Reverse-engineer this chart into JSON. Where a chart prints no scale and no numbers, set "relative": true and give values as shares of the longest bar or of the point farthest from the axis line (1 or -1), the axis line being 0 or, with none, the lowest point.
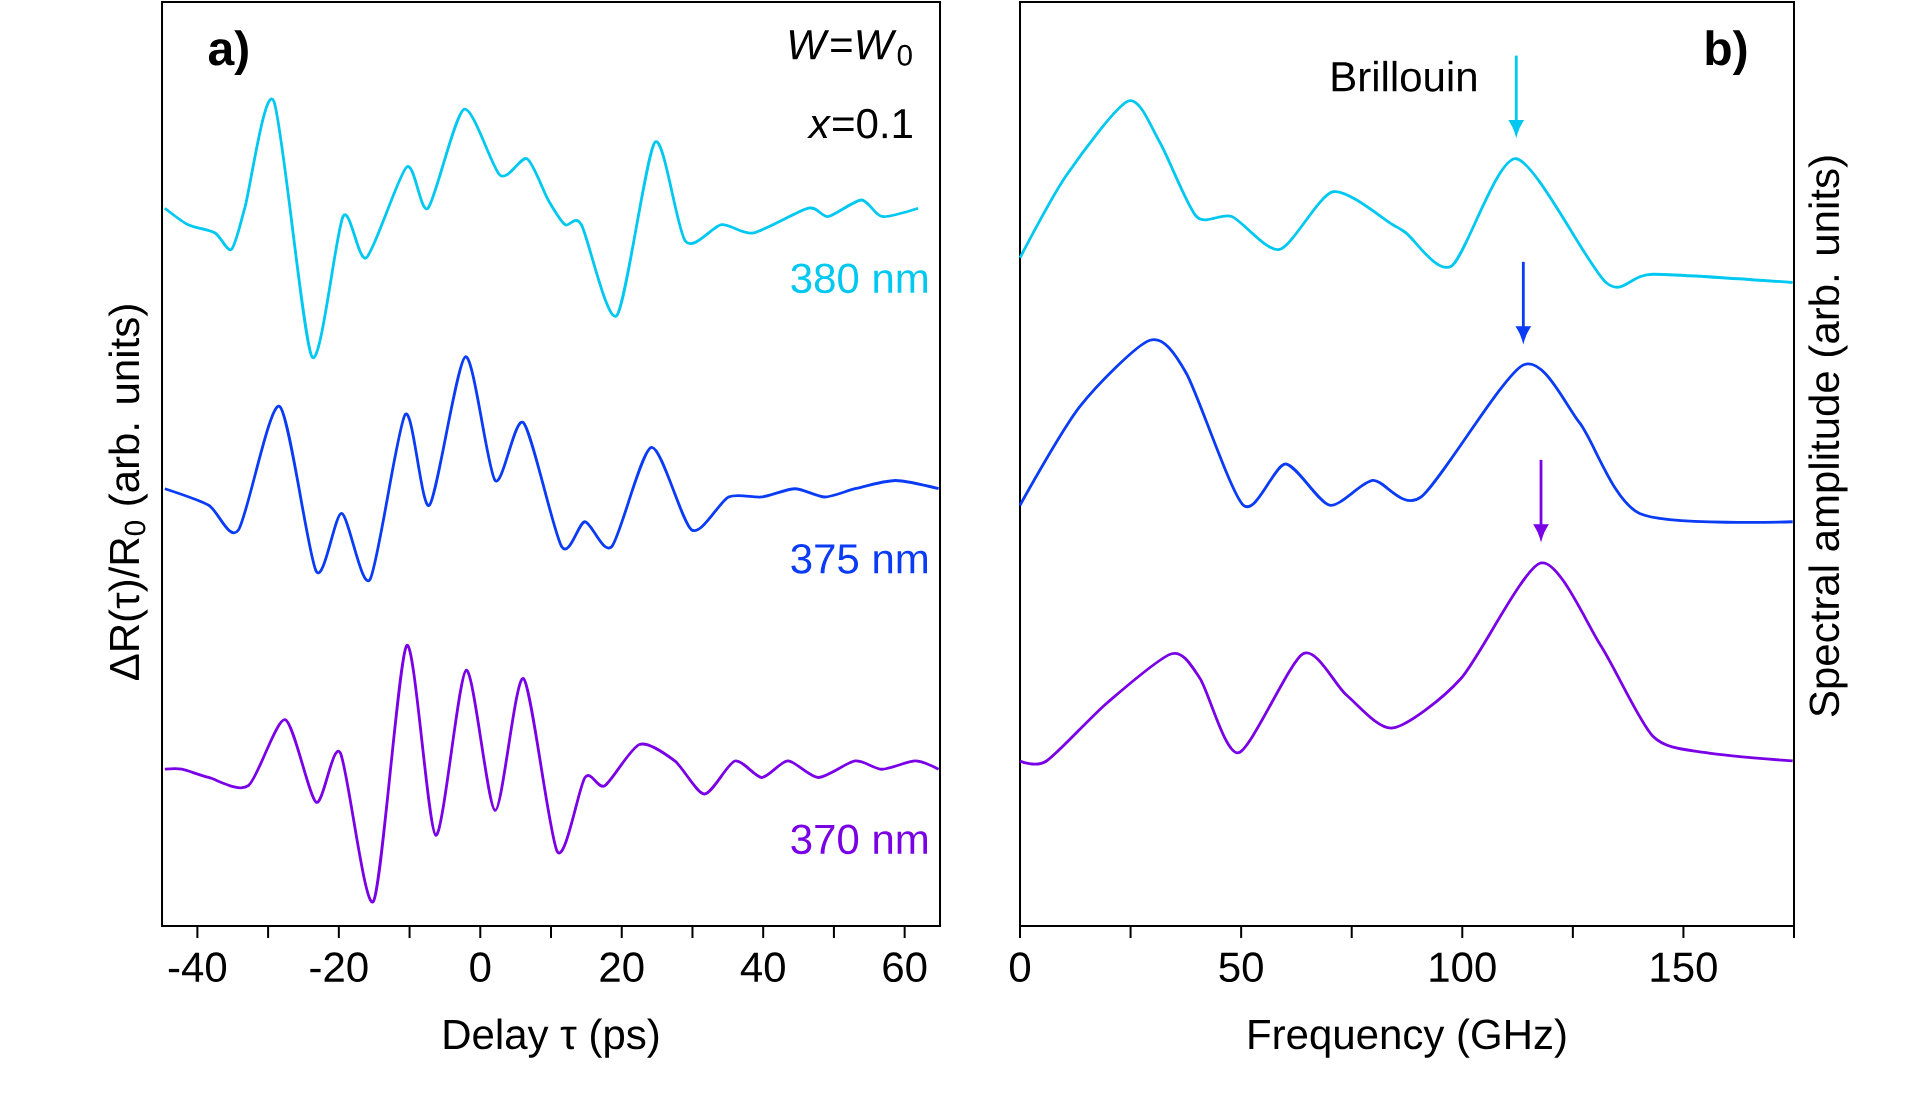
{
  "chart_data": [
    {
      "type": "line",
      "title": "a)",
      "xlabel": "Delay τ (ps)",
      "ylabel": "ΔR(τ)/R$_{0}$ (arb. units)",
      "relative": true,
      "xlim": [
        -45,
        65
      ],
      "xticks": [
        -40,
        {
          "value": -30,
          "label": null
        },
        -20,
        {
          "value": -10,
          "label": null
        },
        0,
        {
          "value": 10,
          "label": null
        },
        20,
        {
          "value": 30,
          "label": null
        },
        40,
        {
          "value": 50,
          "label": null
        },
        60
      ],
      "annotations": [
        "*W*=*W*$_{0}$",
        "*x*=0.1"
      ],
      "series": [
        {
          "name": "380 nm",
          "color": "#00c8f0",
          "x": [
            -44.6,
            -41.3,
            -37.5,
            -35.2,
            -33.3,
            -29.2,
            -23.8,
            -19.4,
            -16.1,
            -10.4,
            -7.4,
            -2.3,
            2.8,
            6.6,
            9.6,
            12.0,
            14.3,
            19.3,
            24.7,
            29.0,
            34.1,
            38.6,
            46.4,
            49.2,
            53.9,
            56.8,
            61.9
          ],
          "values": [
            0.87,
            0.85,
            0.84,
            0.82,
            0.87,
            1,
            0.69,
            0.86,
            0.81,
            0.92,
            0.87,
            0.99,
            0.91,
            0.93,
            0.88,
            0.85,
            0.85,
            0.74,
            0.95,
            0.83,
            0.85,
            0.84,
            0.87,
            0.86,
            0.88,
            0.86,
            0.87
          ]
        },
        {
          "name": "375 nm",
          "color": "#0a3cf5",
          "x": [
            -44.6,
            -38.4,
            -34.2,
            -28.4,
            -23.2,
            -19.6,
            -15.6,
            -10.6,
            -7.2,
            -2.1,
            2.1,
            6.1,
            11.5,
            14.8,
            18.6,
            24.2,
            29.9,
            35.1,
            39.8,
            44.5,
            48.7,
            53.0,
            58.7,
            64.8
          ],
          "values": [
            0.53,
            0.51,
            0.48,
            0.63,
            0.43,
            0.5,
            0.42,
            0.62,
            0.51,
            0.69,
            0.54,
            0.61,
            0.46,
            0.49,
            0.46,
            0.58,
            0.48,
            0.52,
            0.52,
            0.53,
            0.52,
            0.53,
            0.54,
            0.53
          ]
        },
        {
          "name": "370 nm",
          "color": "#7a00e6",
          "x": [
            -44.6,
            -42.2,
            -38.4,
            -32.8,
            -27.6,
            -23.2,
            -19.8,
            -15.1,
            -10.4,
            -6.3,
            -2.0,
            2.1,
            6.1,
            10.9,
            14.8,
            17.6,
            22.5,
            27.5,
            31.7,
            36.0,
            39.8,
            43.5,
            47.8,
            53.0,
            56.8,
            61.5,
            64.8
          ],
          "values": [
            0.19,
            0.19,
            0.18,
            0.17,
            0.25,
            0.15,
            0.21,
            0.03,
            0.34,
            0.11,
            0.31,
            0.14,
            0.3,
            0.09,
            0.18,
            0.17,
            0.22,
            0.2,
            0.16,
            0.2,
            0.18,
            0.2,
            0.18,
            0.2,
            0.19,
            0.2,
            0.19
          ]
        }
      ]
    },
    {
      "type": "line",
      "title": "b)",
      "xlabel": "Frequency (GHz)",
      "ylabel": "Spectral amplitude (arb. units)",
      "relative": true,
      "xlim": [
        0,
        175
      ],
      "xticks": [
        0,
        {
          "value": 25,
          "label": null
        },
        50,
        {
          "value": 75,
          "label": null
        },
        100,
        {
          "value": 125,
          "label": null
        },
        150,
        {
          "value": 175,
          "label": null
        }
      ],
      "annotations": [
        {
          "text": "Brillouin",
          "x": 112.2,
          "y": 0.93
        }
      ],
      "series": [
        {
          "color": "#00c8f0",
          "x": [
            0,
            10.5,
            24.5,
            31.6,
            39.9,
            47.9,
            58.7,
            70.8,
            84.3,
            87.3,
            97.6,
            112.2,
            132.5,
            143.1,
            174.7
          ],
          "values": [
            0.81,
            0.91,
            1,
            0.95,
            0.86,
            0.86,
            0.82,
            0.89,
            0.85,
            0.84,
            0.8,
            0.93,
            0.78,
            0.79,
            0.78
          ]
        },
        {
          "color": "#0a3cf5",
          "x": [
            0,
            13.6,
            29.4,
            37.6,
            50.5,
            60.0,
            70.0,
            79.8,
            90.7,
            113.8,
            126.5,
            140.1,
            174.7
          ],
          "values": [
            0.51,
            0.63,
            0.71,
            0.67,
            0.51,
            0.56,
            0.51,
            0.54,
            0.52,
            0.68,
            0.61,
            0.5,
            0.49
          ]
        },
        {
          "color": "#7a00e6",
          "x": [
            0,
            6.0,
            19.6,
            34.3,
            40.7,
            49.4,
            64.0,
            73.8,
            84.3,
            99.7,
            117.8,
            131.3,
            143.1,
            155.1,
            174.7
          ],
          "values": [
            0.2,
            0.2,
            0.27,
            0.33,
            0.3,
            0.21,
            0.33,
            0.28,
            0.24,
            0.3,
            0.44,
            0.34,
            0.23,
            0.21,
            0.2
          ]
        }
      ]
    }
  ]
}
